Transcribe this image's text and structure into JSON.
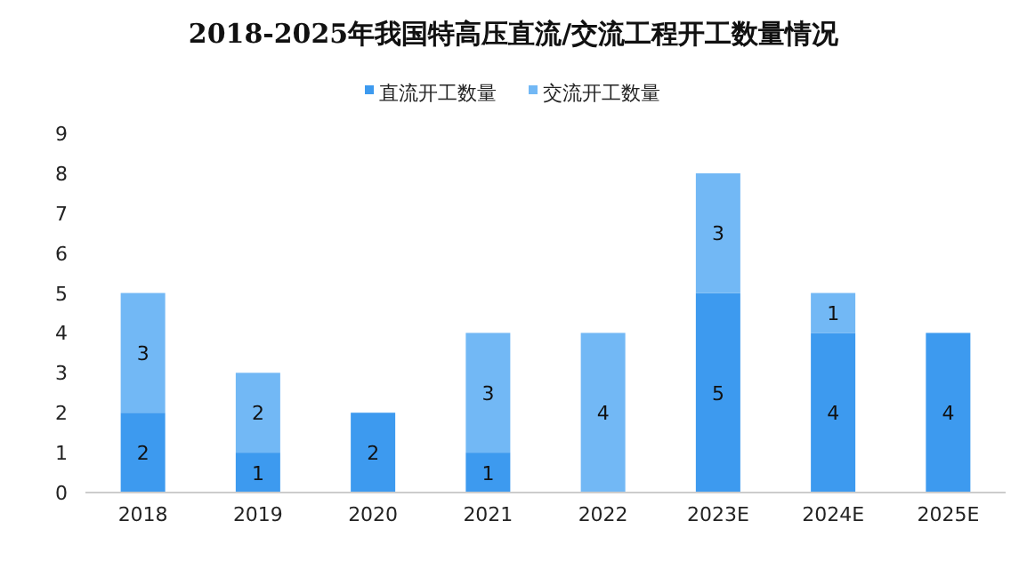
{
  "chart_data": {
    "type": "bar",
    "title": "2018-2025年我国特高压直流/交流工程开工数量情况",
    "categories": [
      "2018",
      "2019",
      "2020",
      "2021",
      "2022",
      "2023E",
      "2024E",
      "2025E"
    ],
    "stacked": true,
    "legend": "top",
    "ylim": [
      0,
      9
    ],
    "yticks": [
      0,
      1,
      2,
      3,
      4,
      5,
      6,
      7,
      8,
      9
    ],
    "series": [
      {
        "name": "直流开工数量",
        "color": "#3d9aef",
        "values": [
          2,
          1,
          2,
          1,
          0,
          5,
          4,
          4
        ],
        "value_labels": [
          "2",
          "1",
          "2",
          "1",
          null,
          "5",
          "4",
          "4"
        ]
      },
      {
        "name": "交流开工数量",
        "color": "#72b8f5",
        "values": [
          3,
          2,
          0,
          3,
          4,
          3,
          1,
          0
        ],
        "value_labels": [
          "3",
          "2",
          null,
          "3",
          "4",
          "3",
          "1",
          null
        ]
      }
    ]
  }
}
